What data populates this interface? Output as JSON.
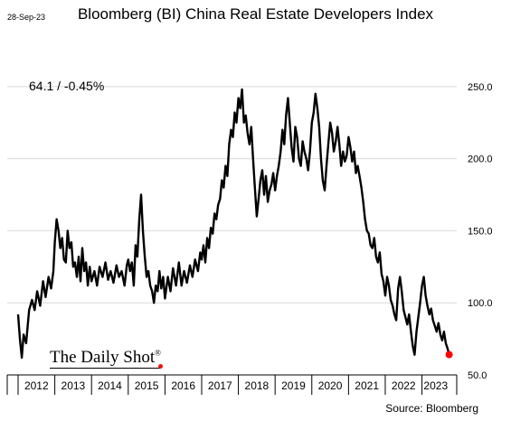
{
  "header": {
    "date_stamp": "28-Sep-23",
    "title": "Bloomberg (BI) China Real Estate Developers Index",
    "last_value_label": "64.1  /  -0.45%"
  },
  "watermark": {
    "text": "The Daily Shot",
    "reg": "®"
  },
  "footer": {
    "source": "Source: Bloomberg"
  },
  "colors": {
    "line": "#000000",
    "last_point": "#ff0000",
    "grid": "#d9d9d9"
  },
  "chart_data": {
    "type": "line",
    "title": "Bloomberg (BI) China Real Estate Developers Index",
    "x_axis": {
      "tick_labels": [
        "2012",
        "2013",
        "2014",
        "2015",
        "2016",
        "2017",
        "2018",
        "2019",
        "2020",
        "2021",
        "2022",
        "2023"
      ],
      "range": [
        2012,
        2023.75
      ]
    },
    "y_axis": {
      "position": "right",
      "tick_labels": [
        "50.0",
        "100.0",
        "150.0",
        "200.0",
        "250.0"
      ],
      "ticks": [
        50,
        100,
        150,
        200,
        250
      ],
      "ylim": [
        50,
        285
      ]
    },
    "grid": "horizontal",
    "series": [
      {
        "x": [
          2012.0,
          2012.05,
          2012.1,
          2012.15,
          2012.22,
          2012.3,
          2012.38,
          2012.45,
          2012.52,
          2012.6,
          2012.68,
          2012.75,
          2012.83,
          2012.9,
          2012.96,
          2013.0,
          2013.05,
          2013.1,
          2013.15,
          2013.2,
          2013.25,
          2013.3,
          2013.35,
          2013.4,
          2013.45,
          2013.5,
          2013.55,
          2013.6,
          2013.65,
          2013.7,
          2013.75,
          2013.8,
          2013.85,
          2013.9,
          2013.95,
          2014.0,
          2014.08,
          2014.15,
          2014.22,
          2014.3,
          2014.38,
          2014.45,
          2014.52,
          2014.6,
          2014.68,
          2014.75,
          2014.82,
          2014.9,
          2014.96,
          2015.0,
          2015.05,
          2015.1,
          2015.15,
          2015.2,
          2015.25,
          2015.3,
          2015.35,
          2015.4,
          2015.45,
          2015.5,
          2015.55,
          2015.6,
          2015.65,
          2015.7,
          2015.75,
          2015.8,
          2015.85,
          2015.9,
          2015.95,
          2016.0,
          2016.08,
          2016.15,
          2016.22,
          2016.3,
          2016.38,
          2016.45,
          2016.52,
          2016.6,
          2016.68,
          2016.75,
          2016.82,
          2016.9,
          2016.96,
          2017.0,
          2017.05,
          2017.1,
          2017.15,
          2017.2,
          2017.25,
          2017.3,
          2017.35,
          2017.4,
          2017.45,
          2017.5,
          2017.55,
          2017.6,
          2017.65,
          2017.7,
          2017.75,
          2017.8,
          2017.85,
          2017.9,
          2017.95,
          2018.0,
          2018.05,
          2018.1,
          2018.15,
          2018.2,
          2018.25,
          2018.3,
          2018.35,
          2018.4,
          2018.45,
          2018.5,
          2018.55,
          2018.6,
          2018.65,
          2018.7,
          2018.75,
          2018.8,
          2018.85,
          2018.9,
          2018.95,
          2019.0,
          2019.05,
          2019.1,
          2019.15,
          2019.2,
          2019.25,
          2019.3,
          2019.35,
          2019.4,
          2019.45,
          2019.5,
          2019.55,
          2019.6,
          2019.65,
          2019.7,
          2019.75,
          2019.8,
          2019.85,
          2019.9,
          2019.95,
          2020.0,
          2020.05,
          2020.1,
          2020.15,
          2020.2,
          2020.25,
          2020.3,
          2020.35,
          2020.4,
          2020.45,
          2020.5,
          2020.55,
          2020.6,
          2020.65,
          2020.7,
          2020.75,
          2020.8,
          2020.85,
          2020.9,
          2020.95,
          2021.0,
          2021.05,
          2021.1,
          2021.15,
          2021.2,
          2021.25,
          2021.3,
          2021.35,
          2021.4,
          2021.45,
          2021.5,
          2021.55,
          2021.6,
          2021.65,
          2021.7,
          2021.75,
          2021.8,
          2021.85,
          2021.9,
          2021.95,
          2022.0,
          2022.05,
          2022.1,
          2022.15,
          2022.2,
          2022.25,
          2022.3,
          2022.35,
          2022.4,
          2022.45,
          2022.5,
          2022.55,
          2022.6,
          2022.65,
          2022.7,
          2022.75,
          2022.8,
          2022.85,
          2022.9,
          2022.95,
          2023.0,
          2023.05,
          2023.1,
          2023.15,
          2023.2,
          2023.25,
          2023.3,
          2023.35,
          2023.4,
          2023.45,
          2023.5,
          2023.55,
          2023.6,
          2023.65,
          2023.7,
          2023.74
        ],
        "values": [
          92,
          75,
          62,
          78,
          72,
          95,
          102,
          95,
          108,
          98,
          115,
          104,
          118,
          110,
          122,
          142,
          158,
          150,
          138,
          145,
          130,
          128,
          150,
          138,
          142,
          125,
          128,
          118,
          132,
          115,
          138,
          122,
          128,
          112,
          125,
          115,
          122,
          112,
          125,
          118,
          128,
          116,
          122,
          114,
          126,
          118,
          122,
          112,
          126,
          130,
          122,
          128,
          112,
          140,
          132,
          158,
          175,
          150,
          132,
          118,
          122,
          112,
          108,
          100,
          112,
          108,
          122,
          110,
          118,
          103,
          118,
          108,
          124,
          112,
          128,
          112,
          122,
          114,
          126,
          118,
          130,
          122,
          135,
          130,
          140,
          128,
          145,
          138,
          152,
          148,
          162,
          158,
          168,
          172,
          185,
          180,
          195,
          188,
          210,
          220,
          215,
          232,
          225,
          242,
          235,
          248,
          225,
          230,
          218,
          210,
          222,
          200,
          180,
          160,
          172,
          185,
          192,
          175,
          188,
          170,
          178,
          182,
          190,
          178,
          188,
          195,
          205,
          220,
          210,
          230,
          242,
          225,
          208,
          198,
          222,
          215,
          200,
          195,
          212,
          205,
          200,
          192,
          205,
          225,
          232,
          245,
          235,
          222,
          200,
          185,
          178,
          195,
          210,
          225,
          218,
          205,
          212,
          222,
          210,
          195,
          205,
          198,
          202,
          215,
          208,
          198,
          205,
          190,
          195,
          188,
          180,
          170,
          158,
          150,
          148,
          140,
          138,
          145,
          132,
          128,
          135,
          120,
          115,
          105,
          118,
          112,
          102,
          98,
          92,
          88,
          110,
          118,
          108,
          95,
          90,
          85,
          92,
          80,
          70,
          64,
          80,
          90,
          100,
          112,
          118,
          105,
          98,
          92,
          96,
          88,
          84,
          80,
          86,
          78,
          74,
          80,
          72,
          68,
          64.1
        ]
      }
    ],
    "last_point": {
      "x": 2023.74,
      "y": 64.1
    }
  }
}
